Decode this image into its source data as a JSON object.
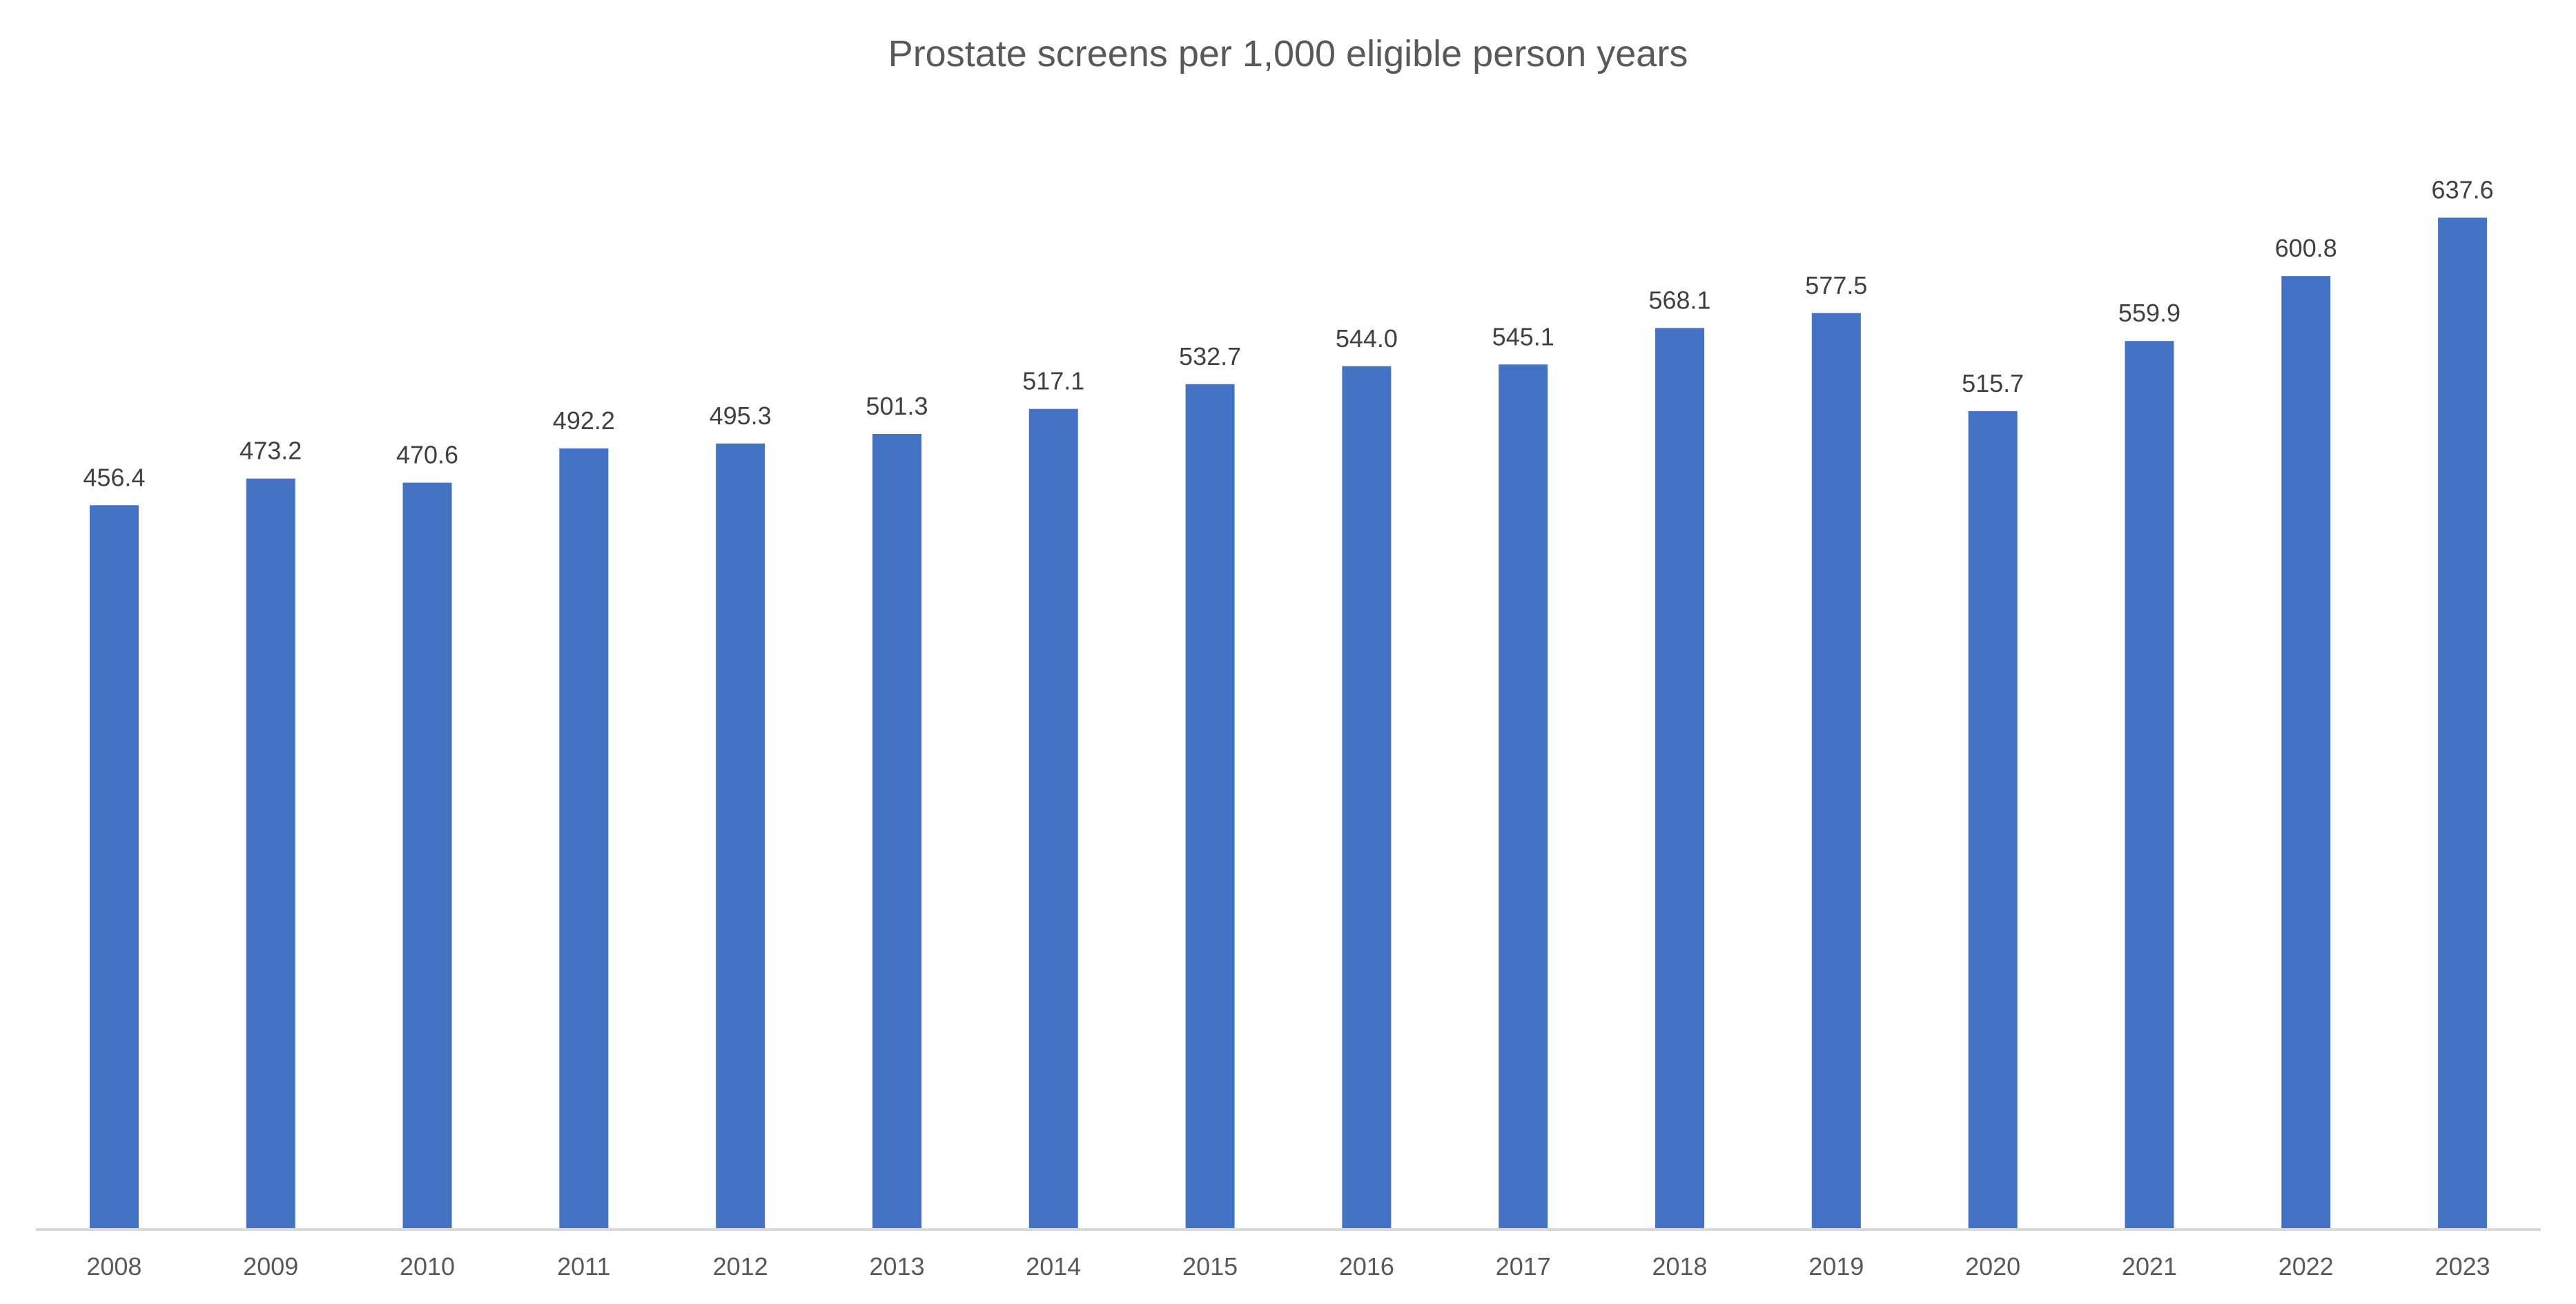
{
  "chart_data": {
    "type": "bar",
    "title": "Prostate screens per 1,000 eligible person years",
    "xlabel": "",
    "ylabel": "",
    "categories": [
      "2008",
      "2009",
      "2010",
      "2011",
      "2012",
      "2013",
      "2014",
      "2015",
      "2016",
      "2017",
      "2018",
      "2019",
      "2020",
      "2021",
      "2022",
      "2023"
    ],
    "values": [
      456.4,
      473.2,
      470.6,
      492.2,
      495.3,
      501.3,
      517.1,
      532.7,
      544.0,
      545.1,
      568.1,
      577.5,
      515.7,
      559.9,
      600.8,
      637.6
    ],
    "data_labels": [
      "456.4",
      "473.2",
      "470.6",
      "492.2",
      "495.3",
      "501.3",
      "517.1",
      "532.7",
      "544.0",
      "545.1",
      "568.1",
      "577.5",
      "515.7",
      "559.9",
      "600.8",
      "637.6"
    ],
    "ylim": [
      0,
      660
    ],
    "grid": false,
    "legend": "none",
    "colors": {
      "bar": "#4472C4",
      "axis": "#D9D9D9",
      "title": "#595959",
      "labels": "#404040"
    }
  }
}
